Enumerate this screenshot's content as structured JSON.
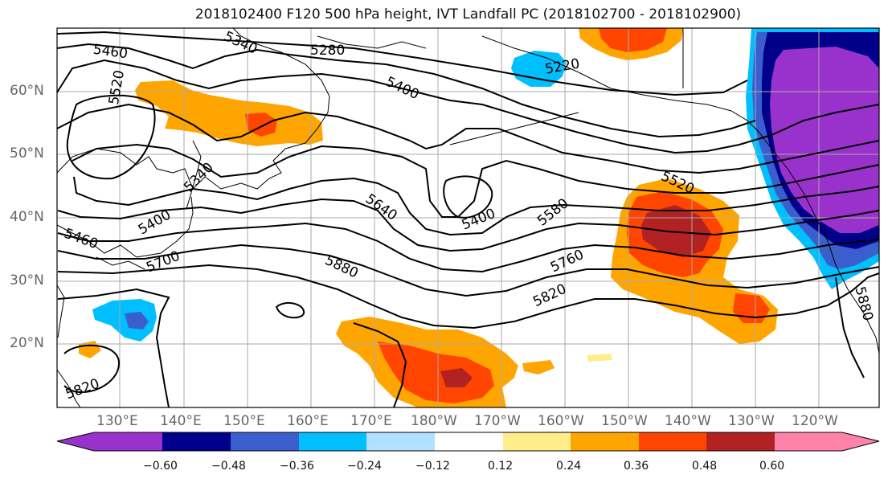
{
  "title": "2018102400 F120 500 hPa height, IVT Landfall PC (2018102700 - 2018102900)",
  "lat_labels": [
    "60°N",
    "50°N",
    "40°N",
    "30°N",
    "20°N"
  ],
  "lon_labels": [
    "130°E",
    "140°E",
    "150°E",
    "160°E",
    "170°E",
    "180°W",
    "170°W",
    "160°W",
    "150°W",
    "140°W",
    "130°W",
    "120°W"
  ],
  "contour_labels": [
    "5460",
    "5520",
    "5340",
    "5280",
    "5220",
    "5400",
    "5340",
    "5400",
    "5460",
    "5700",
    "5640",
    "5400",
    "5580",
    "5520",
    "5760",
    "5820",
    "5880",
    "5880",
    "5820"
  ],
  "colorbar": {
    "colors": [
      "#9932cc",
      "#00008b",
      "#3a5fcd",
      "#00bfff",
      "#b0e2ff",
      "#ffffff",
      "#ffec8b",
      "#ffa500",
      "#ff4500",
      "#b22222",
      "#ff82ab"
    ],
    "ticks": [
      "−0.60",
      "−0.48",
      "−0.36",
      "−0.24",
      "−0.12",
      "0.12",
      "0.24",
      "0.36",
      "0.48",
      "0.60"
    ]
  }
}
